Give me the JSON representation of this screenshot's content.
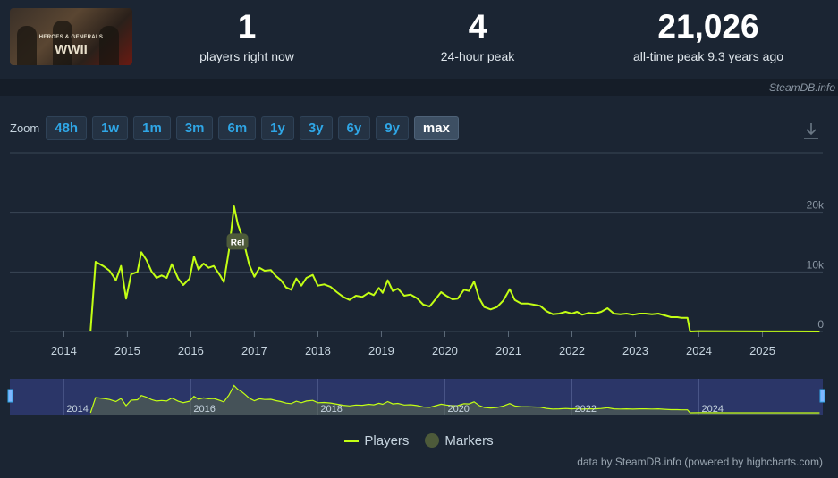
{
  "header": {
    "game_logo_line1": "HEROES & GENERALS",
    "game_logo_line2": "WWII",
    "stats": [
      {
        "value": "1",
        "label": "players right now"
      },
      {
        "value": "4",
        "label": "24-hour peak"
      },
      {
        "value": "21,026",
        "label": "all-time peak 9.3 years ago"
      }
    ]
  },
  "credit": "SteamDB.info",
  "zoom": {
    "label": "Zoom",
    "buttons": [
      "48h",
      "1w",
      "1m",
      "3m",
      "6m",
      "1y",
      "3y",
      "6y",
      "9y",
      "max"
    ],
    "active": "max"
  },
  "legend": {
    "players": "Players",
    "markers": "Markers"
  },
  "footer": "data by SteamDB.info (powered by highcharts.com)",
  "colors": {
    "series": "#c3ff14",
    "marker": "#4d5a3a",
    "accent": "#2fa6e6",
    "navigator_bg": "#2b3668"
  },
  "chart_data": {
    "type": "line",
    "title": "",
    "xlabel": "",
    "ylabel": "",
    "x_ticks": [
      "2014",
      "2015",
      "2016",
      "2017",
      "2018",
      "2019",
      "2020",
      "2021",
      "2022",
      "2023",
      "2024",
      "2025"
    ],
    "y_ticks": [
      "0",
      "10k",
      "20k"
    ],
    "ylim": [
      0,
      30000
    ],
    "xlim": [
      2013.15,
      2025.95
    ],
    "navigator_ticks": [
      "2014",
      "2016",
      "2018",
      "2020",
      "2022",
      "2024"
    ],
    "grid": true,
    "legend_position": "bottom-center",
    "markers": [
      {
        "x": 2016.72,
        "label": "Rel"
      }
    ],
    "series": [
      {
        "name": "Players",
        "points": [
          [
            2014.42,
            0
          ],
          [
            2014.5,
            11700
          ],
          [
            2014.62,
            11000
          ],
          [
            2014.72,
            10200
          ],
          [
            2014.82,
            8600
          ],
          [
            2014.9,
            11000
          ],
          [
            2014.98,
            5500
          ],
          [
            2015.06,
            9600
          ],
          [
            2015.16,
            10000
          ],
          [
            2015.22,
            13300
          ],
          [
            2015.3,
            12000
          ],
          [
            2015.38,
            10100
          ],
          [
            2015.46,
            9000
          ],
          [
            2015.54,
            9400
          ],
          [
            2015.62,
            9000
          ],
          [
            2015.7,
            11300
          ],
          [
            2015.8,
            8900
          ],
          [
            2015.88,
            7800
          ],
          [
            2015.98,
            8900
          ],
          [
            2016.05,
            12600
          ],
          [
            2016.12,
            10400
          ],
          [
            2016.2,
            11400
          ],
          [
            2016.28,
            10700
          ],
          [
            2016.36,
            11000
          ],
          [
            2016.46,
            9400
          ],
          [
            2016.52,
            8300
          ],
          [
            2016.6,
            13600
          ],
          [
            2016.68,
            21000
          ],
          [
            2016.74,
            18000
          ],
          [
            2016.8,
            16200
          ],
          [
            2016.86,
            13800
          ],
          [
            2016.92,
            11200
          ],
          [
            2017.0,
            9200
          ],
          [
            2017.08,
            10700
          ],
          [
            2017.16,
            10200
          ],
          [
            2017.26,
            10300
          ],
          [
            2017.34,
            9300
          ],
          [
            2017.42,
            8600
          ],
          [
            2017.5,
            7400
          ],
          [
            2017.58,
            7000
          ],
          [
            2017.66,
            8900
          ],
          [
            2017.74,
            7700
          ],
          [
            2017.82,
            9000
          ],
          [
            2017.92,
            9500
          ],
          [
            2018.0,
            7700
          ],
          [
            2018.1,
            7900
          ],
          [
            2018.2,
            7500
          ],
          [
            2018.3,
            6600
          ],
          [
            2018.4,
            5800
          ],
          [
            2018.5,
            5300
          ],
          [
            2018.6,
            6000
          ],
          [
            2018.7,
            5800
          ],
          [
            2018.8,
            6500
          ],
          [
            2018.88,
            6100
          ],
          [
            2018.96,
            7300
          ],
          [
            2019.02,
            6500
          ],
          [
            2019.1,
            8600
          ],
          [
            2019.18,
            6800
          ],
          [
            2019.26,
            7200
          ],
          [
            2019.36,
            6000
          ],
          [
            2019.46,
            6200
          ],
          [
            2019.56,
            5600
          ],
          [
            2019.66,
            4500
          ],
          [
            2019.76,
            4200
          ],
          [
            2019.86,
            5500
          ],
          [
            2019.94,
            6600
          ],
          [
            2020.02,
            6000
          ],
          [
            2020.12,
            5400
          ],
          [
            2020.2,
            5500
          ],
          [
            2020.3,
            7000
          ],
          [
            2020.38,
            6800
          ],
          [
            2020.46,
            8400
          ],
          [
            2020.54,
            5600
          ],
          [
            2020.62,
            4100
          ],
          [
            2020.72,
            3700
          ],
          [
            2020.82,
            4100
          ],
          [
            2020.92,
            5200
          ],
          [
            2021.02,
            7100
          ],
          [
            2021.1,
            5300
          ],
          [
            2021.2,
            4700
          ],
          [
            2021.3,
            4700
          ],
          [
            2021.4,
            4500
          ],
          [
            2021.5,
            4300
          ],
          [
            2021.6,
            3400
          ],
          [
            2021.7,
            2900
          ],
          [
            2021.8,
            3000
          ],
          [
            2021.9,
            3300
          ],
          [
            2022.0,
            3000
          ],
          [
            2022.08,
            3300
          ],
          [
            2022.16,
            2800
          ],
          [
            2022.26,
            3100
          ],
          [
            2022.36,
            3000
          ],
          [
            2022.46,
            3300
          ],
          [
            2022.56,
            3900
          ],
          [
            2022.66,
            3000
          ],
          [
            2022.76,
            2900
          ],
          [
            2022.86,
            3000
          ],
          [
            2022.96,
            2800
          ],
          [
            2023.06,
            3000
          ],
          [
            2023.16,
            3000
          ],
          [
            2023.26,
            2900
          ],
          [
            2023.36,
            3000
          ],
          [
            2023.46,
            2700
          ],
          [
            2023.56,
            2400
          ],
          [
            2023.66,
            2400
          ],
          [
            2023.72,
            2300
          ],
          [
            2023.82,
            2300
          ],
          [
            2023.86,
            0
          ],
          [
            2024.0,
            60
          ],
          [
            2024.5,
            30
          ],
          [
            2025.0,
            20
          ],
          [
            2025.5,
            20
          ],
          [
            2025.9,
            5
          ]
        ]
      }
    ]
  }
}
